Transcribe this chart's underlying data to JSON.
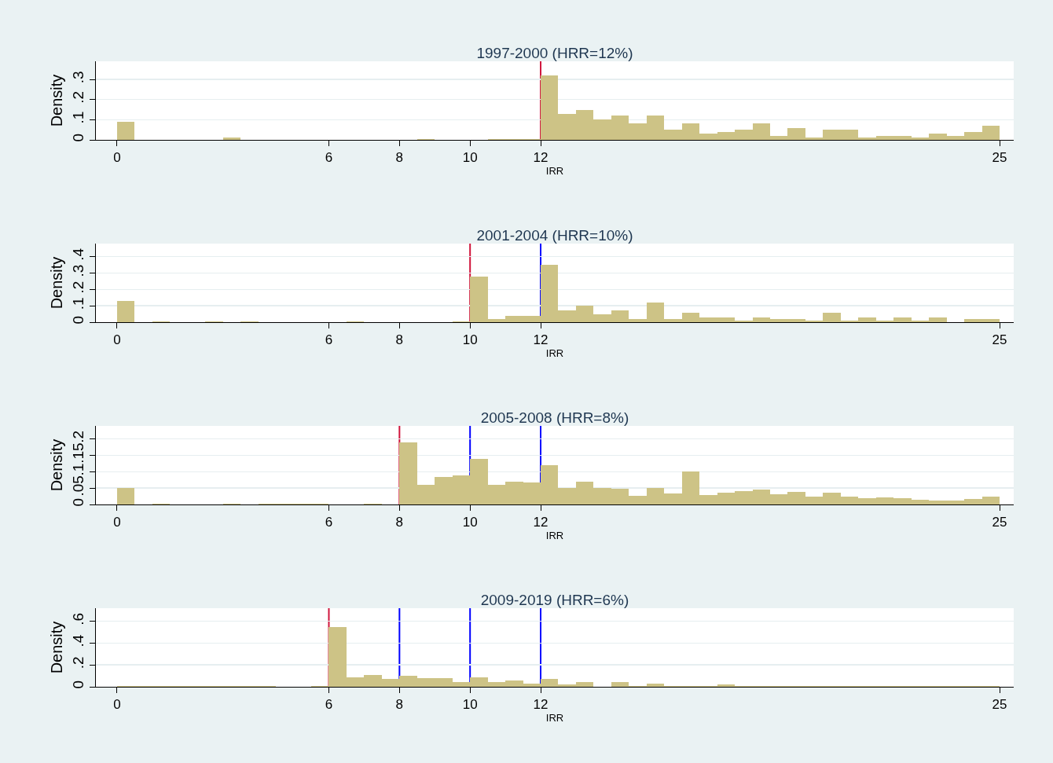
{
  "chart_data": [
    {
      "type": "histogram",
      "title": "1997-2000 (HRR=12%)",
      "xlabel": "IRR",
      "ylabel": "Density",
      "color": "#cdc386",
      "bins": [
        0,
        0.5,
        1,
        1.5,
        2,
        2.5,
        3,
        3.5,
        4,
        4.5,
        5,
        5.5,
        6,
        6.5,
        7,
        7.5,
        8,
        8.5,
        9,
        9.5,
        10,
        10.5,
        11,
        11.5,
        12,
        12.5,
        13,
        13.5,
        14,
        14.5,
        15,
        15.5,
        16,
        16.5,
        17,
        17.5,
        18,
        18.5,
        19,
        19.5,
        20,
        20.5,
        21,
        21.5,
        22,
        22.5,
        23,
        23.5,
        24,
        24.5,
        25
      ],
      "values": [
        0.09,
        0,
        0,
        0,
        0,
        0,
        0.01,
        0,
        0,
        0,
        0,
        0,
        0,
        0,
        0,
        0,
        0,
        0.005,
        0,
        0,
        0,
        0.005,
        0.005,
        0.005,
        0.32,
        0.13,
        0.15,
        0.1,
        0.12,
        0.08,
        0.12,
        0.05,
        0.08,
        0.03,
        0.04,
        0.05,
        0.08,
        0.02,
        0.06,
        0.01,
        0.05,
        0.05,
        0.01,
        0.02,
        0.02,
        0.01,
        0.03,
        0.02,
        0.04,
        0.07
      ],
      "xlim": [
        -0.6,
        25.4
      ],
      "xticks": [
        0,
        6,
        8,
        10,
        12,
        25
      ],
      "ylim": [
        0,
        0.39
      ],
      "yticks": [
        {
          "value": 0,
          "label": "0"
        },
        {
          "value": 0.1,
          "label": ".1"
        },
        {
          "value": 0.2,
          "label": ".2"
        },
        {
          "value": 0.3,
          "label": ".3"
        }
      ],
      "grid": "y",
      "ref_lines": [
        {
          "axis": "x",
          "value": 12,
          "color": "#d0143c"
        }
      ]
    },
    {
      "type": "histogram",
      "title": "2001-2004 (HRR=10%)",
      "xlabel": "IRR",
      "ylabel": "Density",
      "color": "#cdc386",
      "bins": [
        0,
        0.5,
        1,
        1.5,
        2,
        2.5,
        3,
        3.5,
        4,
        4.5,
        5,
        5.5,
        6,
        6.5,
        7,
        7.5,
        8,
        8.5,
        9,
        9.5,
        10,
        10.5,
        11,
        11.5,
        12,
        12.5,
        13,
        13.5,
        14,
        14.5,
        15,
        15.5,
        16,
        16.5,
        17,
        17.5,
        18,
        18.5,
        19,
        19.5,
        20,
        20.5,
        21,
        21.5,
        22,
        22.5,
        23,
        23.5,
        24,
        24.5,
        25
      ],
      "values": [
        0.13,
        0,
        0.005,
        0,
        0,
        0.005,
        0,
        0.005,
        0,
        0,
        0,
        0,
        0,
        0.005,
        0,
        0,
        0,
        0,
        0,
        0.005,
        0.28,
        0.02,
        0.04,
        0.04,
        0.35,
        0.07,
        0.1,
        0.05,
        0.07,
        0.02,
        0.12,
        0.02,
        0.06,
        0.03,
        0.03,
        0.01,
        0.03,
        0.02,
        0.02,
        0.01,
        0.06,
        0.01,
        0.03,
        0.01,
        0.03,
        0.01,
        0.03,
        0,
        0.02,
        0.02
      ],
      "xlim": [
        -0.6,
        25.4
      ],
      "xticks": [
        0,
        6,
        8,
        10,
        12,
        25
      ],
      "ylim": [
        0,
        0.48
      ],
      "yticks": [
        {
          "value": 0,
          "label": "0"
        },
        {
          "value": 0.1,
          "label": ".1"
        },
        {
          "value": 0.2,
          "label": ".2"
        },
        {
          "value": 0.3,
          "label": ".3"
        },
        {
          "value": 0.4,
          "label": ".4"
        }
      ],
      "grid": "y",
      "ref_lines": [
        {
          "axis": "x",
          "value": 10,
          "color": "#d0143c"
        },
        {
          "axis": "x",
          "value": 12,
          "color": "#0000ff"
        }
      ]
    },
    {
      "type": "histogram",
      "title": "2005-2008 (HRR=8%)",
      "xlabel": "IRR",
      "ylabel": "Density",
      "color": "#cdc386",
      "bins": [
        0,
        0.5,
        1,
        1.5,
        2,
        2.5,
        3,
        3.5,
        4,
        4.5,
        5,
        5.5,
        6,
        6.5,
        7,
        7.5,
        8,
        8.5,
        9,
        9.5,
        10,
        10.5,
        11,
        11.5,
        12,
        12.5,
        13,
        13.5,
        14,
        14.5,
        15,
        15.5,
        16,
        16.5,
        17,
        17.5,
        18,
        18.5,
        19,
        19.5,
        20,
        20.5,
        21,
        21.5,
        22,
        22.5,
        23,
        23.5,
        24,
        24.5,
        25
      ],
      "values": [
        0.05,
        0,
        0.003,
        0,
        0,
        0,
        0.003,
        0,
        0.003,
        0.003,
        0.003,
        0.003,
        0,
        0,
        0.003,
        0,
        0.19,
        0.06,
        0.085,
        0.09,
        0.14,
        0.06,
        0.07,
        0.067,
        0.12,
        0.05,
        0.07,
        0.05,
        0.047,
        0.027,
        0.051,
        0.033,
        0.1,
        0.029,
        0.036,
        0.04,
        0.045,
        0.032,
        0.039,
        0.025,
        0.037,
        0.025,
        0.019,
        0.021,
        0.019,
        0.015,
        0.012,
        0.012,
        0.016,
        0.025
      ],
      "xlim": [
        -0.6,
        25.4
      ],
      "xticks": [
        0,
        6,
        8,
        10,
        12,
        25
      ],
      "ylim": [
        0,
        0.24
      ],
      "yticks": [
        {
          "value": 0,
          "label": "0"
        },
        {
          "value": 0.05,
          "label": ".05"
        },
        {
          "value": 0.1,
          "label": ".1"
        },
        {
          "value": 0.15,
          "label": ".15"
        },
        {
          "value": 0.2,
          "label": ".2"
        }
      ],
      "grid": "y",
      "ref_lines": [
        {
          "axis": "x",
          "value": 8,
          "color": "#d0143c"
        },
        {
          "axis": "x",
          "value": 10,
          "color": "#0000ff"
        },
        {
          "axis": "x",
          "value": 12,
          "color": "#0000ff"
        }
      ]
    },
    {
      "type": "histogram",
      "title": "2009-2019 (HRR=6%)",
      "xlabel": "IRR",
      "ylabel": "Density",
      "color": "#cdc386",
      "bins": [
        0,
        0.5,
        1,
        1.5,
        2,
        2.5,
        3,
        3.5,
        4,
        4.5,
        5,
        5.5,
        6,
        6.5,
        7,
        7.5,
        8,
        8.5,
        9,
        9.5,
        10,
        10.5,
        11,
        11.5,
        12,
        12.5,
        13,
        13.5,
        14,
        14.5,
        15,
        15.5,
        16,
        16.5,
        17,
        17.5,
        18,
        18.5,
        19,
        19.5,
        20,
        20.5,
        21,
        21.5,
        22,
        22.5,
        23,
        23.5,
        24,
        24.5,
        25
      ],
      "values": [
        0.01,
        0.01,
        0.01,
        0.01,
        0.01,
        0.01,
        0.01,
        0.01,
        0.01,
        0,
        0,
        0.01,
        0.55,
        0.09,
        0.11,
        0.07,
        0.1,
        0.08,
        0.08,
        0.04,
        0.09,
        0.04,
        0.06,
        0.03,
        0.07,
        0.02,
        0.04,
        0,
        0.04,
        0.01,
        0.03,
        0.005,
        0.01,
        0.005,
        0.02,
        0.005,
        0.01,
        0.005,
        0.01,
        0.005,
        0.01,
        0.005,
        0.005,
        0.005,
        0.005,
        0.005,
        0.005,
        0.005,
        0.005,
        0.005
      ],
      "xlim": [
        -0.6,
        25.4
      ],
      "xticks": [
        0,
        6,
        8,
        10,
        12,
        25
      ],
      "ylim": [
        0,
        0.72
      ],
      "yticks": [
        {
          "value": 0,
          "label": "0"
        },
        {
          "value": 0.2,
          "label": ".2"
        },
        {
          "value": 0.4,
          "label": ".4"
        },
        {
          "value": 0.6,
          "label": ".6"
        }
      ],
      "grid": "y",
      "ref_lines": [
        {
          "axis": "x",
          "value": 6,
          "color": "#d0143c"
        },
        {
          "axis": "x",
          "value": 8,
          "color": "#0000ff"
        },
        {
          "axis": "x",
          "value": 10,
          "color": "#0000ff"
        },
        {
          "axis": "x",
          "value": 12,
          "color": "#0000ff"
        }
      ]
    }
  ]
}
